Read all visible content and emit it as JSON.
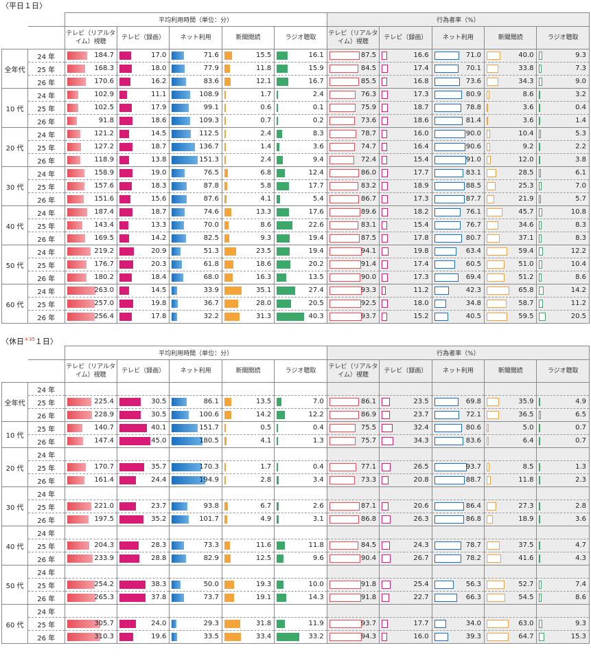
{
  "weekday": {
    "title": "〈平日１日〉",
    "header_time": "平均利用時間（単位：分）",
    "header_rate": "行為者率（%）",
    "cols": [
      "テレビ（リアルタイム）視聴",
      "テレビ（録画）",
      "ネット利用",
      "新聞閲読",
      "ラジオ聴取"
    ],
    "groups": [
      {
        "label": "全年代",
        "rows": [
          {
            "year": "24 年",
            "time": [
              "184.7",
              "17.0",
              "71.6",
              "15.5",
              "16.1"
            ],
            "rate": [
              "87.5",
              "16.6",
              "71.0",
              "40.0",
              "9.3"
            ]
          },
          {
            "year": "25 年",
            "time": [
              "168.3",
              "18.0",
              "77.9",
              "11.8",
              "15.9"
            ],
            "rate": [
              "84.5",
              "17.4",
              "70.1",
              "33.8",
              "7.3"
            ]
          },
          {
            "year": "26 年",
            "time": [
              "170.6",
              "16.2",
              "83.6",
              "12.1",
              "16.7"
            ],
            "rate": [
              "85.5",
              "16.8",
              "73.6",
              "34.3",
              "9.0"
            ]
          }
        ]
      },
      {
        "label": "10 代",
        "rows": [
          {
            "year": "24 年",
            "time": [
              "102.9",
              "11.1",
              "108.9",
              "1.7",
              "2.4"
            ],
            "rate": [
              "76.3",
              "17.3",
              "80.9",
              "8.6",
              "3.2"
            ]
          },
          {
            "year": "25 年",
            "time": [
              "102.5",
              "17.9",
              "99.1",
              "0.6",
              "0.1"
            ],
            "rate": [
              "75.9",
              "18.7",
              "78.8",
              "3.6",
              "0.4"
            ]
          },
          {
            "year": "26 年",
            "time": [
              "91.8",
              "18.6",
              "109.3",
              "0.7",
              "0.2"
            ],
            "rate": [
              "73.6",
              "18.6",
              "81.4",
              "3.6",
              "1.4"
            ]
          }
        ]
      },
      {
        "label": "20 代",
        "rows": [
          {
            "year": "24 年",
            "time": [
              "121.2",
              "14.5",
              "112.5",
              "2.4",
              "8.3"
            ],
            "rate": [
              "78.7",
              "16.0",
              "90.0",
              "10.4",
              "5.3"
            ]
          },
          {
            "year": "25 年",
            "time": [
              "127.2",
              "18.7",
              "136.7",
              "1.4",
              "3.6"
            ],
            "rate": [
              "74.7",
              "16.4",
              "90.6",
              "9.2",
              "2.2"
            ]
          },
          {
            "year": "26 年",
            "time": [
              "118.9",
              "13.8",
              "151.3",
              "2.4",
              "9.4"
            ],
            "rate": [
              "72.4",
              "15.4",
              "91.0",
              "12.0",
              "3.8"
            ]
          }
        ]
      },
      {
        "label": "30 代",
        "rows": [
          {
            "year": "24 年",
            "time": [
              "158.9",
              "19.0",
              "76.5",
              "6.8",
              "12.4"
            ],
            "rate": [
              "86.0",
              "17.7",
              "83.1",
              "28.5",
              "6.1"
            ]
          },
          {
            "year": "25 年",
            "time": [
              "157.6",
              "18.3",
              "87.8",
              "5.8",
              "17.7"
            ],
            "rate": [
              "83.2",
              "18.9",
              "88.5",
              "25.3",
              "7.0"
            ]
          },
          {
            "year": "26 年",
            "time": [
              "151.6",
              "15.6",
              "87.6",
              "4.1",
              "5.4"
            ],
            "rate": [
              "86.7",
              "17.3",
              "87.7",
              "21.9",
              "5.7"
            ]
          }
        ]
      },
      {
        "label": "40 代",
        "rows": [
          {
            "year": "24 年",
            "time": [
              "187.4",
              "18.7",
              "74.6",
              "13.3",
              "17.6"
            ],
            "rate": [
              "89.6",
              "18.2",
              "76.1",
              "45.7",
              "10.8"
            ]
          },
          {
            "year": "25 年",
            "time": [
              "143.4",
              "13.3",
              "70.0",
              "8.6",
              "22.6"
            ],
            "rate": [
              "83.1",
              "15.4",
              "76.7",
              "34.6",
              "8.3"
            ]
          },
          {
            "year": "26 年",
            "time": [
              "169.5",
              "14.2",
              "82.5",
              "9.3",
              "19.4"
            ],
            "rate": [
              "87.5",
              "17.8",
              "80.7",
              "37.1",
              "8.3"
            ]
          }
        ]
      },
      {
        "label": "50 代",
        "rows": [
          {
            "year": "24 年",
            "time": [
              "219.2",
              "20.9",
              "51.3",
              "23.5",
              "19.4"
            ],
            "rate": [
              "94.1",
              "19.8",
              "63.4",
              "59.4",
              "12.2"
            ]
          },
          {
            "year": "25 年",
            "time": [
              "176.7",
              "20.3",
              "61.8",
              "18.6",
              "20.2"
            ],
            "rate": [
              "91.4",
              "17.4",
              "60.5",
              "51.0",
              "10.4"
            ]
          },
          {
            "year": "26 年",
            "time": [
              "180.2",
              "18.4",
              "68.0",
              "16.3",
              "13.5"
            ],
            "rate": [
              "90.0",
              "17.3",
              "69.4",
              "51.2",
              "8.6"
            ]
          }
        ]
      },
      {
        "label": "60 代",
        "rows": [
          {
            "year": "24 年",
            "time": [
              "263.0",
              "14.5",
              "33.9",
              "35.1",
              "27.4"
            ],
            "rate": [
              "93.3",
              "11.2",
              "42.3",
              "65.8",
              "14.2"
            ]
          },
          {
            "year": "25 年",
            "time": [
              "257.0",
              "19.8",
              "36.7",
              "28.0",
              "20.5"
            ],
            "rate": [
              "92.5",
              "18.0",
              "34.8",
              "58.7",
              "11.2"
            ]
          },
          {
            "year": "26 年",
            "time": [
              "256.4",
              "17.8",
              "32.2",
              "31.3",
              "40.3"
            ],
            "rate": [
              "93.7",
              "15.2",
              "40.5",
              "59.5",
              "20.5"
            ]
          }
        ]
      }
    ]
  },
  "holiday": {
    "title_a": "〈休日",
    "title_note": "＊35",
    "title_b": "１日〉",
    "header_time": "平均利用時間（単位：分）",
    "header_rate": "行為者率（%）",
    "cols": [
      "テレビ（リアルタイム）視聴",
      "テレビ（録画）",
      "ネット利用",
      "新聞閲読",
      "ラジオ聴取"
    ],
    "groups": [
      {
        "label": "全年代",
        "rows": [
          {
            "year": "24 年",
            "time": null,
            "rate": null
          },
          {
            "year": "25 年",
            "time": [
              "225.4",
              "30.5",
              "86.1",
              "13.5",
              "7.0"
            ],
            "rate": [
              "86.1",
              "23.5",
              "69.8",
              "35.9",
              "4.9"
            ]
          },
          {
            "year": "26 年",
            "time": [
              "228.9",
              "30.5",
              "100.6",
              "14.2",
              "12.2"
            ],
            "rate": [
              "86.9",
              "23.7",
              "72.1",
              "36.5",
              "6.5"
            ]
          }
        ]
      },
      {
        "label": "10 代",
        "rows": [
          {
            "year": "25 年",
            "time": [
              "140.7",
              "40.1",
              "151.7",
              "0.5",
              "0.4"
            ],
            "rate": [
              "75.5",
              "32.4",
              "80.6",
              "5.0",
              "0.7"
            ]
          },
          {
            "year": "26 年",
            "time": [
              "147.4",
              "45.0",
              "180.5",
              "4.1",
              "1.3"
            ],
            "rate": [
              "75.7",
              "34.3",
              "83.6",
              "6.4",
              "0.7"
            ]
          }
        ]
      },
      {
        "label": "20 代",
        "rows": [
          {
            "year": "24 年",
            "time": null,
            "rate": null
          },
          {
            "year": "25 年",
            "time": [
              "170.7",
              "35.7",
              "170.3",
              "1.7",
              "0.4"
            ],
            "rate": [
              "77.1",
              "26.5",
              "93.7",
              "8.5",
              "1.3"
            ]
          },
          {
            "year": "26 年",
            "time": [
              "161.4",
              "24.4",
              "194.9",
              "2.8",
              "3.4"
            ],
            "rate": [
              "73.3",
              "20.8",
              "88.7",
              "11.8",
              "2.3"
            ]
          }
        ]
      },
      {
        "label": "30 代",
        "rows": [
          {
            "year": "24 年",
            "time": null,
            "rate": null
          },
          {
            "year": "25 年",
            "time": [
              "221.0",
              "23.7",
              "93.8",
              "6.7",
              "2.6"
            ],
            "rate": [
              "87.1",
              "20.6",
              "86.4",
              "27.3",
              "2.8"
            ]
          },
          {
            "year": "26 年",
            "time": [
              "197.5",
              "35.2",
              "101.7",
              "4.9",
              "3.1"
            ],
            "rate": [
              "86.8",
              "26.3",
              "86.8",
              "18.9",
              "3.6"
            ]
          }
        ]
      },
      {
        "label": "40 代",
        "rows": [
          {
            "year": "24 年",
            "time": null,
            "rate": null
          },
          {
            "year": "25 年",
            "time": [
              "204.3",
              "28.3",
              "73.3",
              "11.6",
              "11.8"
            ],
            "rate": [
              "84.5",
              "24.3",
              "78.7",
              "37.5",
              "4.7"
            ]
          },
          {
            "year": "26 年",
            "time": [
              "233.9",
              "28.8",
              "82.9",
              "12.5",
              "9.6"
            ],
            "rate": [
              "90.4",
              "26.7",
              "78.2",
              "41.6",
              "4.3"
            ]
          }
        ]
      },
      {
        "label": "50 代",
        "rows": [
          {
            "year": "24 年",
            "time": null,
            "rate": null
          },
          {
            "year": "25 年",
            "time": [
              "254.2",
              "38.3",
              "50.0",
              "19.3",
              "10.0"
            ],
            "rate": [
              "91.8",
              "25.4",
              "56.3",
              "52.7",
              "7.4"
            ]
          },
          {
            "year": "26 年",
            "time": [
              "265.3",
              "37.8",
              "73.7",
              "19.1",
              "14.3"
            ],
            "rate": [
              "91.8",
              "22.7",
              "66.3",
              "54.5",
              "8.6"
            ]
          }
        ]
      },
      {
        "label": "60 代",
        "rows": [
          {
            "year": "24 年",
            "time": null,
            "rate": null
          },
          {
            "year": "25 年",
            "time": [
              "305.7",
              "24.0",
              "29.3",
              "31.8",
              "11.9"
            ],
            "rate": [
              "93.7",
              "17.7",
              "34.0",
              "63.0",
              "9.3"
            ]
          },
          {
            "year": "26 年",
            "time": [
              "310.3",
              "19.6",
              "33.5",
              "33.4",
              "33.2"
            ],
            "rate": [
              "94.3",
              "16.0",
              "39.3",
              "64.7",
              "15.3"
            ]
          }
        ]
      }
    ]
  }
}
